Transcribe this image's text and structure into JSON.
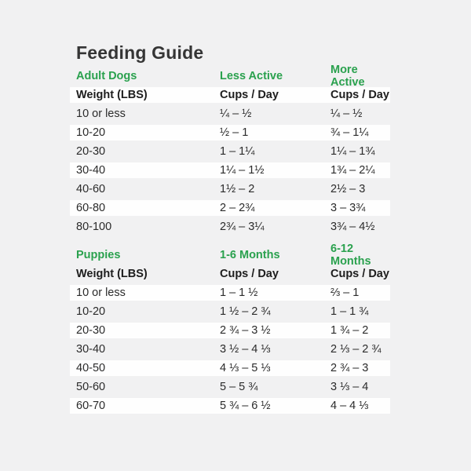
{
  "page": {
    "title": "Feeding Guide"
  },
  "colors": {
    "accent_green": "#2aa14e",
    "background": "#f1f1f2",
    "row_highlight": "#fefefe",
    "text_dark": "#2b2b2b"
  },
  "tables": [
    {
      "section": "Adult Dogs",
      "col2_header": "Less Active",
      "col3_header": "More Active",
      "subheaders": [
        "Weight (LBS)",
        "Cups / Day",
        "Cups / Day"
      ],
      "rows": [
        [
          "10 or less",
          "¼ – ½",
          "¼ – ½"
        ],
        [
          "10-20",
          "½ – 1",
          "¾ – 1¼"
        ],
        [
          "20-30",
          "1 – 1¼",
          "1¼ – 1¾"
        ],
        [
          "30-40",
          "1¼ – 1½",
          "1¾ – 2¼"
        ],
        [
          "40-60",
          "1½ – 2",
          "2½ – 3"
        ],
        [
          "60-80",
          "2 – 2¾",
          "3 – 3¾"
        ],
        [
          "80-100",
          "2¾ – 3¼",
          "3¾ – 4½"
        ]
      ]
    },
    {
      "section": "Puppies",
      "col2_header": "1-6 Months",
      "col3_header": "6-12 Months",
      "subheaders": [
        "Weight (LBS)",
        "Cups / Day",
        "Cups / Day"
      ],
      "rows": [
        [
          "10 or less",
          "1 – 1 ½",
          "⅔ – 1"
        ],
        [
          "10-20",
          "1 ½ – 2 ¾",
          "1 – 1 ¾"
        ],
        [
          "20-30",
          "2 ¾ – 3 ½",
          "1 ¾ – 2"
        ],
        [
          "30-40",
          "3 ½ – 4 ⅓",
          "2 ⅓ – 2 ¾"
        ],
        [
          "40-50",
          "4 ⅓ – 5 ⅓",
          "2 ¾ – 3"
        ],
        [
          "50-60",
          "5 – 5 ¾",
          "3 ⅓ – 4"
        ],
        [
          "60-70",
          "5 ¾ – 6 ½",
          "4 – 4 ⅓"
        ]
      ]
    }
  ]
}
